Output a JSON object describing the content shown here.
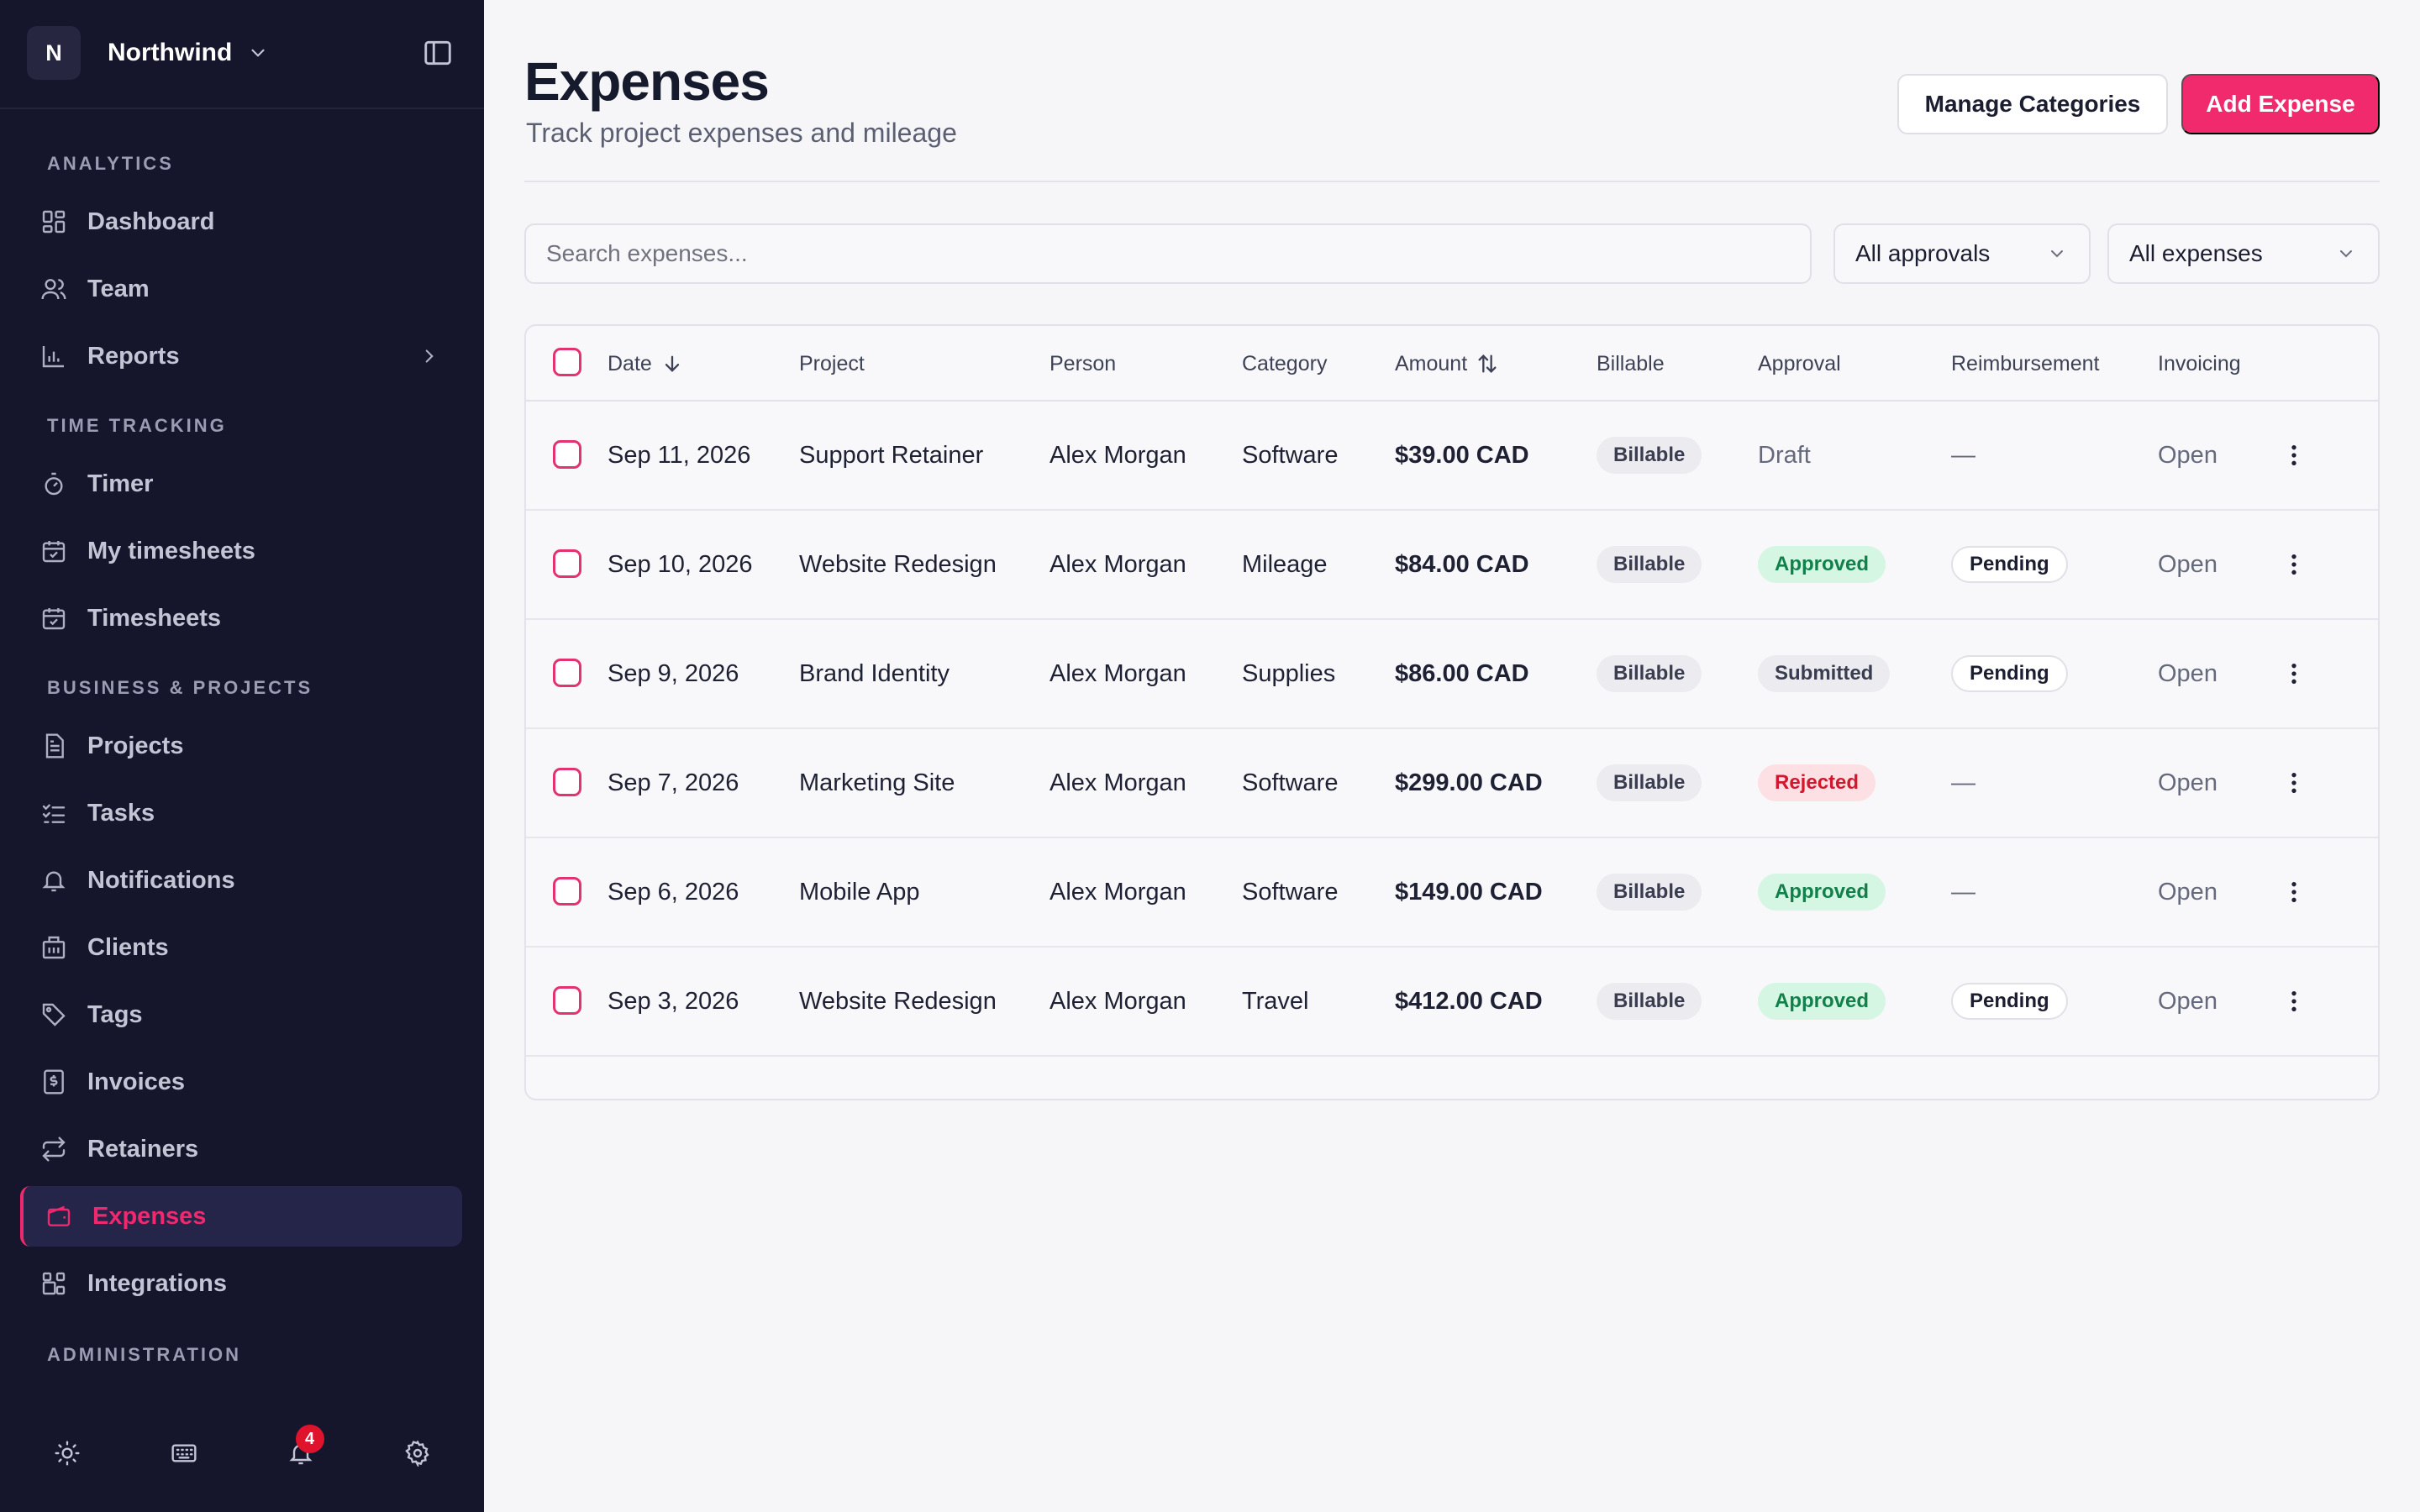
{
  "workspace": {
    "avatar": "N",
    "name": "Northwind"
  },
  "sidebar": {
    "sections": [
      {
        "title": "ANALYTICS"
      },
      {
        "title": "TIME TRACKING"
      },
      {
        "title": "BUSINESS & PROJECTS"
      },
      {
        "title": "ADMINISTRATION"
      }
    ],
    "items": [
      {
        "label": "Dashboard",
        "icon": "dashboard-icon"
      },
      {
        "label": "Team",
        "icon": "team-icon"
      },
      {
        "label": "Reports",
        "icon": "reports-icon"
      },
      {
        "label": "Timer",
        "icon": "timer-icon"
      },
      {
        "label": "My timesheets",
        "icon": "calendar-check-icon"
      },
      {
        "label": "Timesheets",
        "icon": "calendar-check-icon"
      },
      {
        "label": "Projects",
        "icon": "document-icon"
      },
      {
        "label": "Tasks",
        "icon": "checklist-icon"
      },
      {
        "label": "Notifications",
        "icon": "bell-icon"
      },
      {
        "label": "Clients",
        "icon": "building-icon"
      },
      {
        "label": "Tags",
        "icon": "tag-icon"
      },
      {
        "label": "Invoices",
        "icon": "invoice-icon"
      },
      {
        "label": "Retainers",
        "icon": "repeat-icon"
      },
      {
        "label": "Expenses",
        "icon": "wallet-icon",
        "active": true
      },
      {
        "label": "Integrations",
        "icon": "integrations-icon"
      }
    ],
    "notification_count": "4"
  },
  "header": {
    "title": "Expenses",
    "subtitle": "Track project expenses and mileage",
    "manage_label": "Manage Categories",
    "add_label": "Add Expense"
  },
  "filters": {
    "search_placeholder": "Search expenses...",
    "approval_selected": "All approvals",
    "expense_selected": "All expenses"
  },
  "table": {
    "columns": [
      "Date",
      "Project",
      "Person",
      "Category",
      "Amount",
      "Billable",
      "Approval",
      "Reimbursement",
      "Invoicing"
    ],
    "rows": [
      {
        "date": "Sep 11, 2026",
        "project": "Support Retainer",
        "person": "Alex Morgan",
        "category": "Software",
        "amount": "$39.00 CAD",
        "billable": "Billable",
        "approval": "Draft",
        "reimbursement": "—",
        "invoicing": "Open"
      },
      {
        "date": "Sep 10, 2026",
        "project": "Website Redesign",
        "person": "Alex Morgan",
        "category": "Mileage",
        "amount": "$84.00 CAD",
        "billable": "Billable",
        "approval": "Approved",
        "reimbursement": "Pending",
        "invoicing": "Open"
      },
      {
        "date": "Sep 9, 2026",
        "project": "Brand Identity",
        "person": "Alex Morgan",
        "category": "Supplies",
        "amount": "$86.00 CAD",
        "billable": "Billable",
        "approval": "Submitted",
        "reimbursement": "Pending",
        "invoicing": "Open"
      },
      {
        "date": "Sep 7, 2026",
        "project": "Marketing Site",
        "person": "Alex Morgan",
        "category": "Software",
        "amount": "$299.00 CAD",
        "billable": "Billable",
        "approval": "Rejected",
        "reimbursement": "—",
        "invoicing": "Open"
      },
      {
        "date": "Sep 6, 2026",
        "project": "Mobile App",
        "person": "Alex Morgan",
        "category": "Software",
        "amount": "$149.00 CAD",
        "billable": "Billable",
        "approval": "Approved",
        "reimbursement": "—",
        "invoicing": "Open"
      },
      {
        "date": "Sep 3, 2026",
        "project": "Website Redesign",
        "person": "Alex Morgan",
        "category": "Travel",
        "amount": "$412.00 CAD",
        "billable": "Billable",
        "approval": "Approved",
        "reimbursement": "Pending",
        "invoicing": "Open"
      }
    ]
  },
  "colors": {
    "accent": "#f02a6c",
    "sidebar_bg": "#15152b",
    "approved": "#11804a",
    "rejected": "#d0192e"
  }
}
